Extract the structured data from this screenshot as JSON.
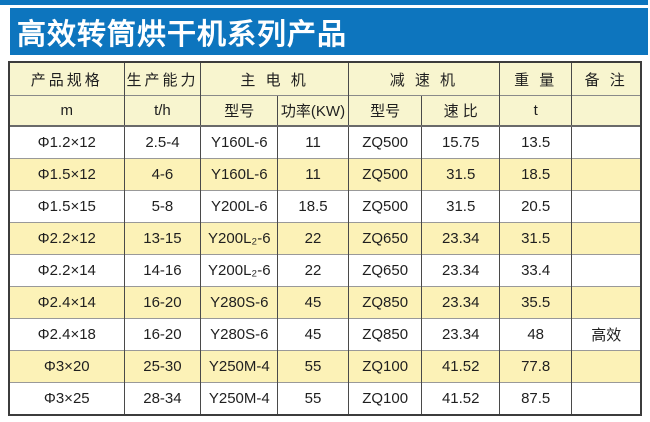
{
  "banner": {
    "title": "高效转筒烘干机系列产品",
    "bg_color": "#0d75be",
    "text_color": "#ffffff"
  },
  "table": {
    "header_row1": {
      "spec": "产品规格",
      "capacity": "生产能力",
      "main_motor": "主 电 机",
      "reducer": "减 速 机",
      "weight": "重 量",
      "remark": "备 注"
    },
    "header_row2": {
      "spec_unit": "m",
      "capacity_unit": "t/h",
      "motor_model": "型号",
      "motor_power": "功率(KW)",
      "reducer_model": "型号",
      "speed_ratio": "速 比",
      "weight_unit": "t",
      "remark": ""
    },
    "rows": [
      [
        "Φ1.2×12",
        "2.5-4",
        "Y160L-6",
        "11",
        "ZQ500",
        "15.75",
        "13.5",
        ""
      ],
      [
        "Φ1.5×12",
        "4-6",
        "Y160L-6",
        "11",
        "ZQ500",
        "31.5",
        "18.5",
        ""
      ],
      [
        "Φ1.5×15",
        "5-8",
        "Y200L-6",
        "18.5",
        "ZQ500",
        "31.5",
        "20.5",
        ""
      ],
      [
        "Φ2.2×12",
        "13-15",
        "Y200L₂-6",
        "22",
        "ZQ650",
        "23.34",
        "31.5",
        ""
      ],
      [
        "Φ2.2×14",
        "14-16",
        "Y200L₂-6",
        "22",
        "ZQ650",
        "23.34",
        "33.4",
        ""
      ],
      [
        "Φ2.4×14",
        "16-20",
        "Y280S-6",
        "45",
        "ZQ850",
        "23.34",
        "35.5",
        ""
      ],
      [
        "Φ2.4×18",
        "16-20",
        "Y280S-6",
        "45",
        "ZQ850",
        "23.34",
        "48",
        "高效"
      ],
      [
        "Φ3×20",
        "25-30",
        "Y250M-4",
        "55",
        "ZQ100",
        "41.52",
        "77.8",
        ""
      ],
      [
        "Φ3×25",
        "28-34",
        "Y250M-4",
        "55",
        "ZQ100",
        "41.52",
        "87.5",
        ""
      ]
    ],
    "colors": {
      "header_bg": "#f8f5cf",
      "alt_row_bg": "#fcf2b7",
      "plain_row_bg": "#ffffff",
      "outer_border": "#3c3c3c"
    }
  }
}
